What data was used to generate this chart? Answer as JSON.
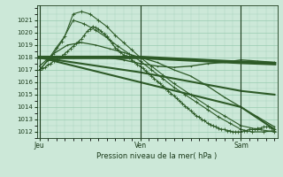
{
  "bg_color": "#cce8d8",
  "plot_bg": "#cce8d8",
  "grid_color": "#99ccb0",
  "line_color": "#2d5a27",
  "title": "Pression niveau de la mer( hPa )",
  "ylim": [
    1011.5,
    1022.2
  ],
  "yticks": [
    1012,
    1013,
    1014,
    1015,
    1016,
    1017,
    1018,
    1019,
    1020,
    1021
  ],
  "day_labels": [
    "Jeu",
    "Ven",
    "Sam"
  ],
  "day_positions": [
    0,
    36,
    72
  ],
  "xlim": [
    -1,
    85
  ],
  "series": [
    {
      "x": [
        0,
        1,
        2,
        3,
        4,
        5,
        6,
        7,
        8,
        9,
        10,
        11,
        12,
        13,
        14,
        15,
        16,
        17,
        18,
        19,
        20,
        21,
        22,
        23,
        24,
        25,
        26,
        27,
        28,
        29,
        30,
        31,
        32,
        33,
        34,
        35,
        36,
        37,
        38,
        39,
        40,
        41,
        42,
        43,
        44,
        45,
        46,
        47,
        48,
        49,
        50,
        51,
        52,
        53,
        54,
        55,
        56,
        57,
        58,
        59,
        60,
        61,
        62,
        63,
        64,
        65,
        66,
        67,
        68,
        69,
        70,
        71,
        72,
        73,
        74,
        75,
        76,
        77,
        78,
        79,
        80,
        81,
        82,
        83,
        84
      ],
      "y": [
        1017.0,
        1017.1,
        1017.2,
        1017.4,
        1017.5,
        1017.7,
        1017.8,
        1018.0,
        1018.1,
        1018.3,
        1018.5,
        1018.7,
        1018.9,
        1019.1,
        1019.3,
        1019.5,
        1019.8,
        1020.1,
        1020.3,
        1020.5,
        1020.4,
        1020.3,
        1020.1,
        1019.9,
        1019.7,
        1019.4,
        1019.1,
        1018.8,
        1018.6,
        1018.4,
        1018.2,
        1018.1,
        1018.0,
        1017.8,
        1017.6,
        1017.4,
        1017.3,
        1017.1,
        1016.9,
        1016.7,
        1016.5,
        1016.3,
        1016.1,
        1015.9,
        1015.7,
        1015.5,
        1015.3,
        1015.1,
        1014.9,
        1014.7,
        1014.5,
        1014.3,
        1014.1,
        1013.9,
        1013.7,
        1013.5,
        1013.3,
        1013.2,
        1013.0,
        1012.9,
        1012.7,
        1012.6,
        1012.5,
        1012.4,
        1012.3,
        1012.2,
        1012.2,
        1012.1,
        1012.1,
        1012.0,
        1012.0,
        1012.0,
        1012.0,
        1012.1,
        1012.1,
        1012.2,
        1012.2,
        1012.2,
        1012.3,
        1012.3,
        1012.4,
        1012.4,
        1012.4,
        1012.3,
        1012.2
      ],
      "style": "marker",
      "color": "#2d5a27",
      "lw": 0.8,
      "ms": 2.5
    },
    {
      "x": [
        0,
        3,
        6,
        9,
        12,
        15,
        18,
        21,
        24,
        27,
        30,
        33,
        36,
        40,
        44,
        48,
        54,
        60,
        66,
        72,
        78,
        84
      ],
      "y": [
        1017.0,
        1017.8,
        1018.8,
        1019.7,
        1021.5,
        1021.7,
        1021.5,
        1021.0,
        1020.5,
        1019.8,
        1019.2,
        1018.6,
        1018.0,
        1017.3,
        1016.6,
        1015.9,
        1015.0,
        1014.1,
        1013.3,
        1012.5,
        1012.2,
        1012.0
      ],
      "style": "marker",
      "color": "#2d5a27",
      "lw": 0.8,
      "ms": 2.5
    },
    {
      "x": [
        0,
        4,
        8,
        12,
        16,
        20,
        24,
        28,
        32,
        36,
        40,
        44,
        48,
        52,
        56,
        60,
        64,
        68,
        72,
        76,
        80,
        84
      ],
      "y": [
        1017.0,
        1018.0,
        1019.3,
        1021.0,
        1020.7,
        1020.2,
        1019.6,
        1018.9,
        1018.3,
        1017.7,
        1017.0,
        1016.3,
        1015.6,
        1015.0,
        1014.4,
        1013.8,
        1013.2,
        1012.7,
        1012.2,
        1012.0,
        1012.0,
        1012.1
      ],
      "style": "marker",
      "color": "#2d5a27",
      "lw": 0.8,
      "ms": 2.5
    },
    {
      "x": [
        0,
        5,
        10,
        15,
        20,
        25,
        30,
        36,
        42,
        48,
        54,
        60,
        66,
        72,
        78,
        84
      ],
      "y": [
        1017.3,
        1018.3,
        1019.0,
        1019.2,
        1019.0,
        1018.7,
        1018.4,
        1018.0,
        1017.6,
        1017.0,
        1016.5,
        1015.7,
        1014.8,
        1014.0,
        1013.2,
        1012.4
      ],
      "style": "line_marker",
      "color": "#2d5a27",
      "lw": 0.9,
      "ms": 2.0
    },
    {
      "x": [
        0,
        18,
        36,
        54,
        72,
        84
      ],
      "y": [
        1018.0,
        1018.0,
        1018.0,
        1017.8,
        1017.6,
        1017.5
      ],
      "style": "thick_flat",
      "color": "#2d5a27",
      "lw": 2.8
    },
    {
      "x": [
        0,
        36,
        72,
        84
      ],
      "y": [
        1018.0,
        1016.8,
        1015.3,
        1015.0
      ],
      "style": "line",
      "color": "#2d5a27",
      "lw": 1.5
    },
    {
      "x": [
        0,
        36,
        72,
        84
      ],
      "y": [
        1018.0,
        1016.0,
        1014.0,
        1012.2
      ],
      "style": "line",
      "color": "#2d5a27",
      "lw": 1.5
    },
    {
      "x": [
        0,
        12,
        24,
        30,
        36,
        42,
        48,
        54,
        60,
        66,
        72,
        78,
        84
      ],
      "y": [
        1018.0,
        1018.0,
        1018.0,
        1017.8,
        1017.5,
        1017.3,
        1017.2,
        1017.3,
        1017.5,
        1017.6,
        1017.8,
        1017.7,
        1017.6
      ],
      "style": "line_marker",
      "color": "#2d5a27",
      "lw": 1.0,
      "ms": 2.0
    }
  ]
}
